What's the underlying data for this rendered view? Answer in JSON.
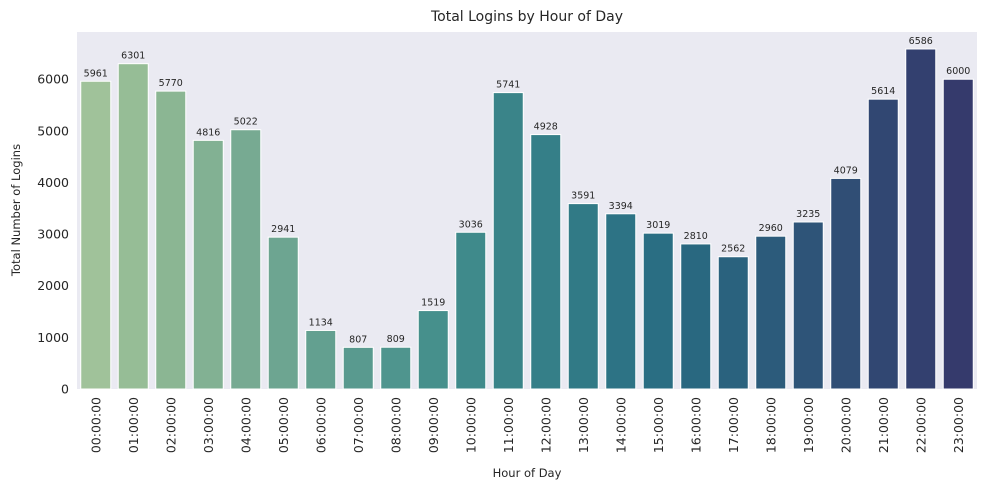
{
  "chart_data": {
    "type": "bar",
    "title": "Total Logins by Hour of Day",
    "xlabel": "Hour of Day",
    "ylabel": "Total Number of Logins",
    "categories": [
      "00:00:00",
      "01:00:00",
      "02:00:00",
      "03:00:00",
      "04:00:00",
      "05:00:00",
      "06:00:00",
      "07:00:00",
      "08:00:00",
      "09:00:00",
      "10:00:00",
      "11:00:00",
      "12:00:00",
      "13:00:00",
      "14:00:00",
      "15:00:00",
      "16:00:00",
      "17:00:00",
      "18:00:00",
      "19:00:00",
      "20:00:00",
      "21:00:00",
      "22:00:00",
      "23:00:00"
    ],
    "values": [
      5961,
      6301,
      5770,
      4816,
      5022,
      2941,
      1134,
      807,
      809,
      1519,
      3036,
      5741,
      4928,
      3591,
      3394,
      3019,
      2810,
      2562,
      2960,
      3235,
      4079,
      5614,
      6586,
      6000
    ],
    "data_labels": [
      "5961",
      "6301",
      "5770",
      "4816",
      "5022",
      "2941",
      "1134",
      "807",
      "809",
      "1519",
      "3036",
      "5741",
      "4928",
      "3591",
      "3394",
      "3019",
      "2810",
      "2562",
      "2960",
      "3235",
      "4079",
      "5614",
      "6586",
      "6000"
    ],
    "yticks": [
      0,
      1000,
      2000,
      3000,
      4000,
      5000,
      6000
    ],
    "ytick_labels": [
      "0",
      "1000",
      "2000",
      "3000",
      "4000",
      "5000",
      "6000"
    ],
    "ylim": [
      0,
      6915
    ],
    "grid": false,
    "background_color": "#eaeaf2",
    "palette": "crest",
    "colors": [
      "#a0c29a",
      "#96bd96",
      "#8bb693",
      "#82b193",
      "#77aa92",
      "#6da591",
      "#63a090",
      "#599a8f",
      "#4f958e",
      "#46908c",
      "#3f8a8b",
      "#3a8489",
      "#357f88",
      "#317a86",
      "#2d7385",
      "#2a6e83",
      "#296880",
      "#2a627e",
      "#2c5b7b",
      "#2e5478",
      "#304e75",
      "#314772",
      "#33406f",
      "#353a6c"
    ]
  }
}
